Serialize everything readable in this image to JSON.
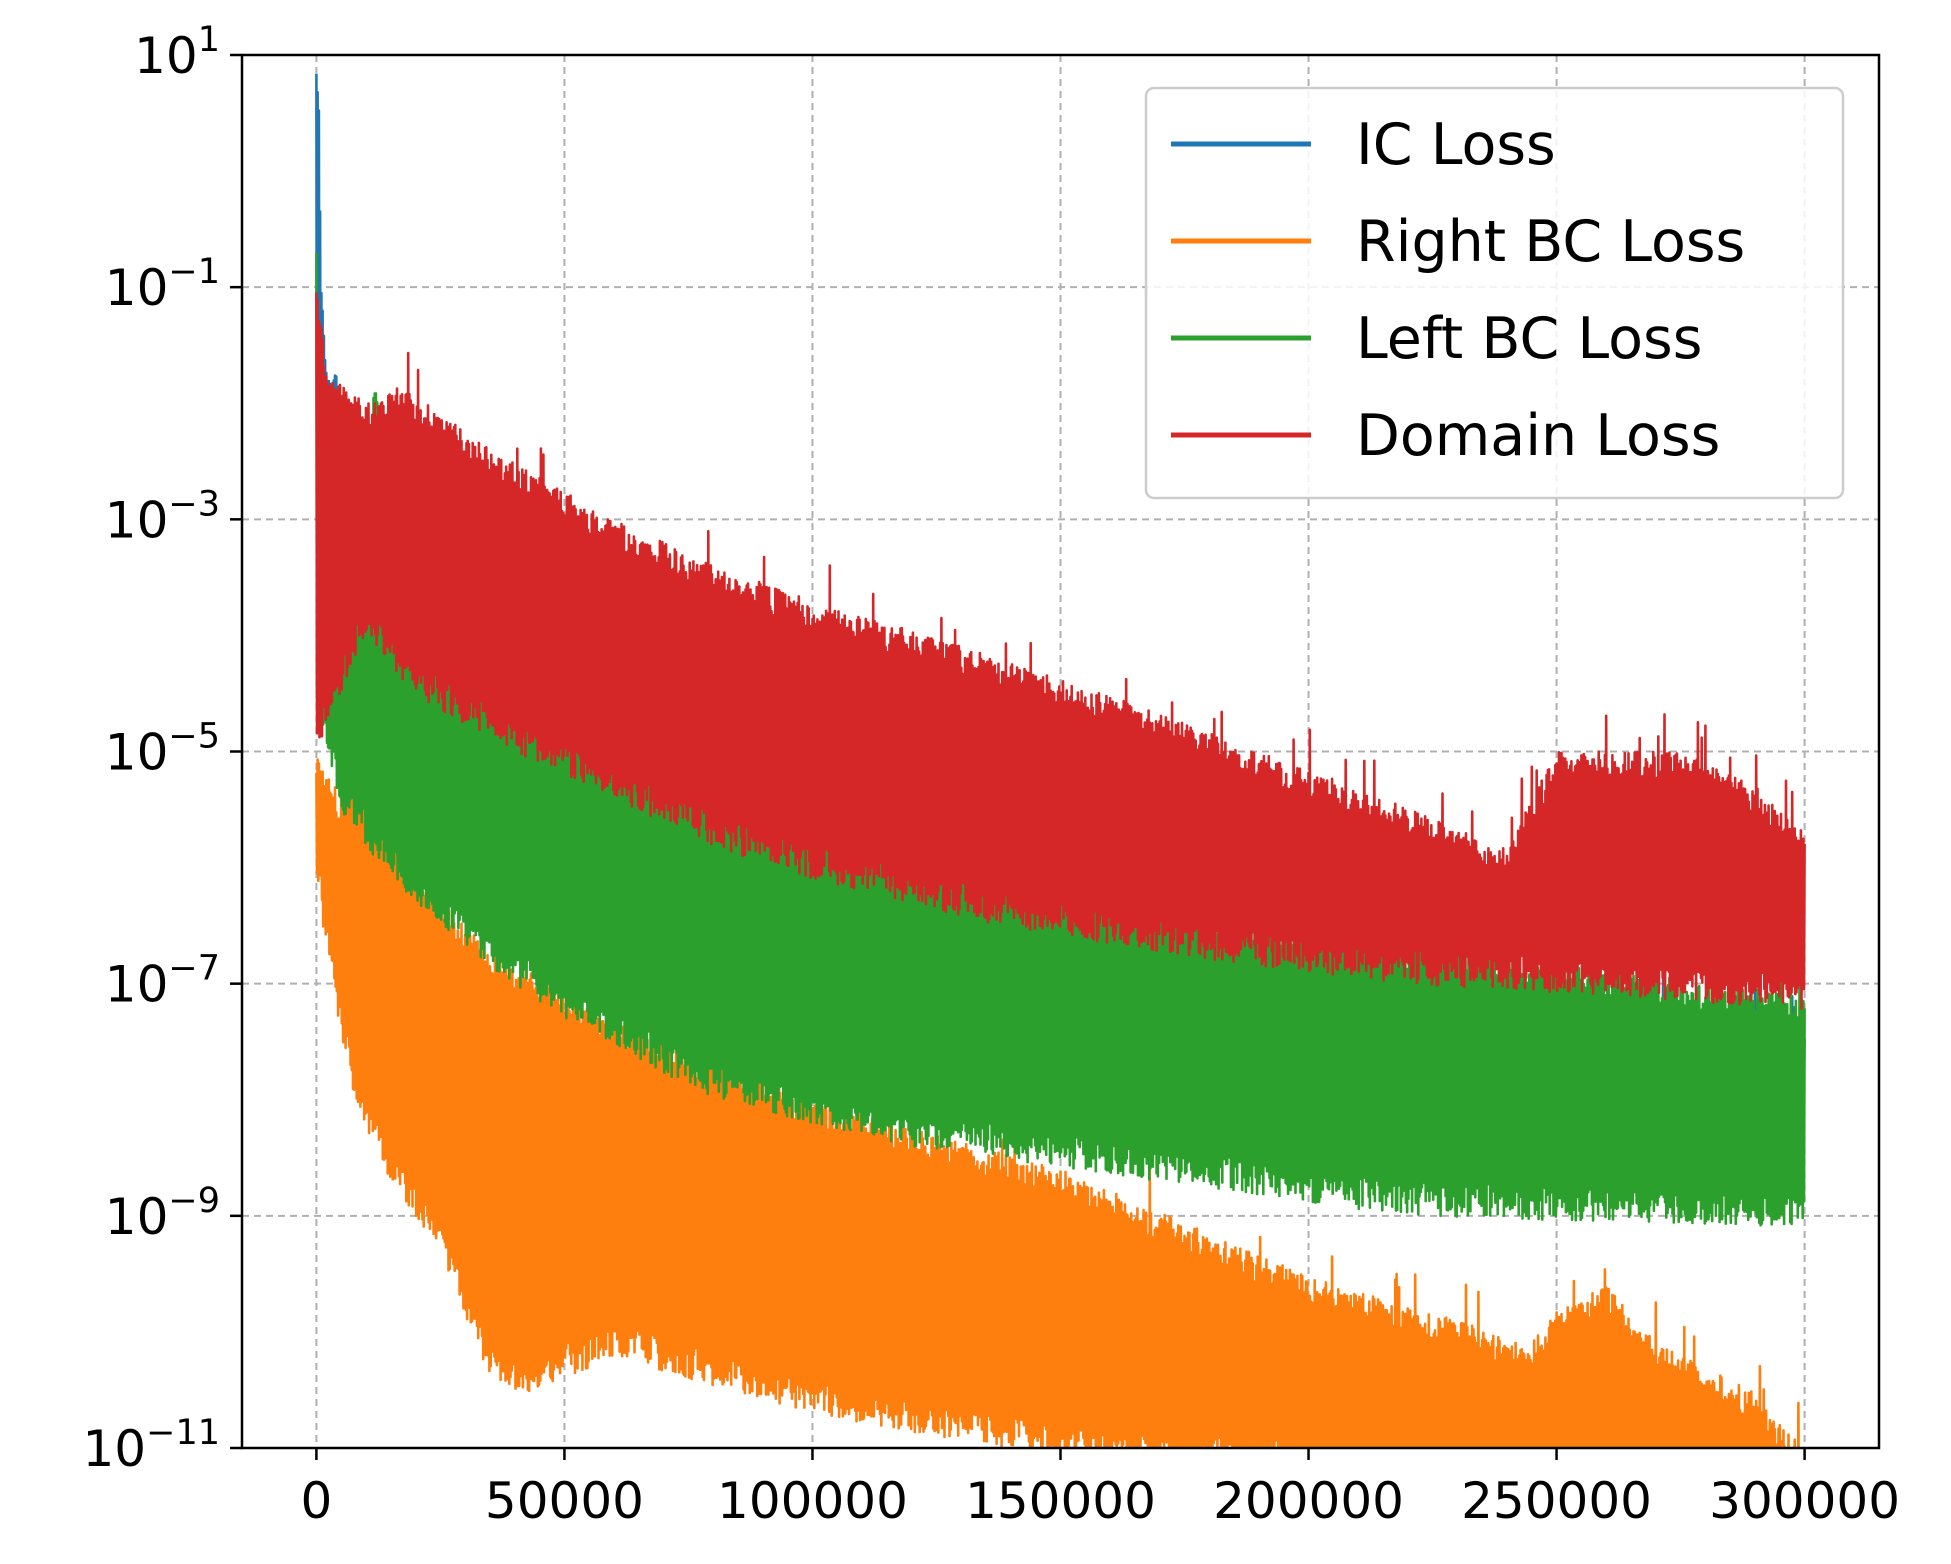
{
  "chart_data": {
    "type": "line",
    "title": "",
    "xlabel": "",
    "ylabel": "",
    "x_scale": "linear",
    "y_scale": "log",
    "xlim": [
      -15000,
      315000
    ],
    "ylim": [
      1e-11,
      10
    ],
    "x_ticks": [
      0,
      50000,
      100000,
      150000,
      200000,
      250000,
      300000
    ],
    "x_tick_labels": [
      "0",
      "50000",
      "100000",
      "150000",
      "200000",
      "250000",
      "300000"
    ],
    "y_ticks": [
      1e-11,
      1e-09,
      1e-07,
      1e-05,
      0.001,
      0.1,
      10
    ],
    "y_tick_labels": [
      {
        "base": "10",
        "exp": "−11"
      },
      {
        "base": "10",
        "exp": "−9"
      },
      {
        "base": "10",
        "exp": "−7"
      },
      {
        "base": "10",
        "exp": "−5"
      },
      {
        "base": "10",
        "exp": "−3"
      },
      {
        "base": "10",
        "exp": "−1"
      },
      {
        "base": "10",
        "exp": "1"
      }
    ],
    "grid": true,
    "legend_position": "top-right",
    "series": [
      {
        "name": "IC Loss",
        "color": "#1f77b4",
        "upper": [
          [
            0,
            10
          ],
          [
            500,
            5
          ],
          [
            1000,
            0.1
          ],
          [
            2000,
            0.02
          ],
          [
            4000,
            0.02
          ],
          [
            6000,
            0.003
          ],
          [
            8000,
            0.0003
          ],
          [
            10000,
            0.0001
          ],
          [
            40000,
            3e-06
          ],
          [
            300000,
            4e-08
          ]
        ],
        "lower": [
          [
            0,
            0.0001
          ],
          [
            2000,
            0.0002
          ],
          [
            4000,
            0.00015
          ],
          [
            6000,
            2e-05
          ],
          [
            10000,
            1e-05
          ],
          [
            40000,
            5e-07
          ],
          [
            300000,
            1e-08
          ]
        ]
      },
      {
        "name": "Right BC Loss",
        "color": "#ff7f0e",
        "upper": [
          [
            0,
            1e-05
          ],
          [
            5000,
            4e-06
          ],
          [
            10000,
            8e-06
          ],
          [
            15000,
            2e-06
          ],
          [
            30000,
            3e-07
          ],
          [
            50000,
            8e-08
          ],
          [
            100000,
            1e-08
          ],
          [
            150000,
            2.5e-09
          ],
          [
            200000,
            3e-10
          ],
          [
            245000,
            8e-11
          ],
          [
            250000,
            1.5e-10
          ],
          [
            260000,
            2.5e-10
          ],
          [
            270000,
            8e-11
          ],
          [
            290000,
            3e-11
          ],
          [
            300000,
            1e-11
          ]
        ],
        "lower": [
          [
            0,
            8e-07
          ],
          [
            3000,
            1e-07
          ],
          [
            8000,
            8e-09
          ],
          [
            15000,
            2e-09
          ],
          [
            25000,
            5e-10
          ],
          [
            35000,
            4e-11
          ],
          [
            42000,
            3e-11
          ],
          [
            60000,
            6e-11
          ],
          [
            100000,
            2e-11
          ],
          [
            150000,
            8e-12
          ],
          [
            200000,
            6e-12
          ],
          [
            250000,
            2e-12
          ],
          [
            280000,
            1e-12
          ],
          [
            300000,
            1e-12
          ]
        ]
      },
      {
        "name": "Left BC Loss",
        "color": "#2ca02c",
        "upper": [
          [
            0,
            0.2
          ],
          [
            1000,
            0.0003
          ],
          [
            5000,
            0.0001
          ],
          [
            8000,
            0.0001
          ],
          [
            10000,
            0.003
          ],
          [
            12000,
            0.02
          ],
          [
            14000,
            0.003
          ],
          [
            20000,
            0.0005
          ],
          [
            35000,
            7e-05
          ],
          [
            60000,
            1.5e-05
          ],
          [
            100000,
            3e-06
          ],
          [
            150000,
            8e-07
          ],
          [
            200000,
            3e-07
          ],
          [
            250000,
            1.5e-07
          ],
          [
            300000,
            8e-08
          ]
        ],
        "lower": [
          [
            0,
            3e-05
          ],
          [
            5000,
            3e-06
          ],
          [
            15000,
            8e-07
          ],
          [
            30000,
            2e-07
          ],
          [
            50000,
            5e-08
          ],
          [
            80000,
            1e-08
          ],
          [
            120000,
            4e-09
          ],
          [
            170000,
            2e-09
          ],
          [
            220000,
            1e-09
          ],
          [
            300000,
            8e-10
          ]
        ]
      },
      {
        "name": "Domain Loss",
        "color": "#d62728",
        "upper": [
          [
            0,
            0.1
          ],
          [
            2000,
            0.02
          ],
          [
            5000,
            0.015
          ],
          [
            10000,
            0.01
          ],
          [
            17000,
            0.015
          ],
          [
            25000,
            0.008
          ],
          [
            40000,
            0.003
          ],
          [
            60000,
            0.001
          ],
          [
            80000,
            0.0004
          ],
          [
            100000,
            0.0002
          ],
          [
            130000,
            8e-05
          ],
          [
            160000,
            3e-05
          ],
          [
            200000,
            7e-06
          ],
          [
            240000,
            1.5e-06
          ],
          [
            250000,
            1e-05
          ],
          [
            260000,
            1e-05
          ],
          [
            275000,
            1e-05
          ],
          [
            290000,
            5e-06
          ],
          [
            300000,
            2e-06
          ]
        ],
        "lower": [
          [
            0,
            1e-05
          ],
          [
            10000,
            0.0001
          ],
          [
            20000,
            3e-05
          ],
          [
            40000,
            1e-05
          ],
          [
            60000,
            4e-06
          ],
          [
            80000,
            1.5e-06
          ],
          [
            100000,
            8e-07
          ],
          [
            140000,
            3e-07
          ],
          [
            180000,
            1.6e-07
          ],
          [
            220000,
            1e-07
          ],
          [
            260000,
            8e-08
          ],
          [
            300000,
            6e-08
          ]
        ]
      }
    ]
  }
}
